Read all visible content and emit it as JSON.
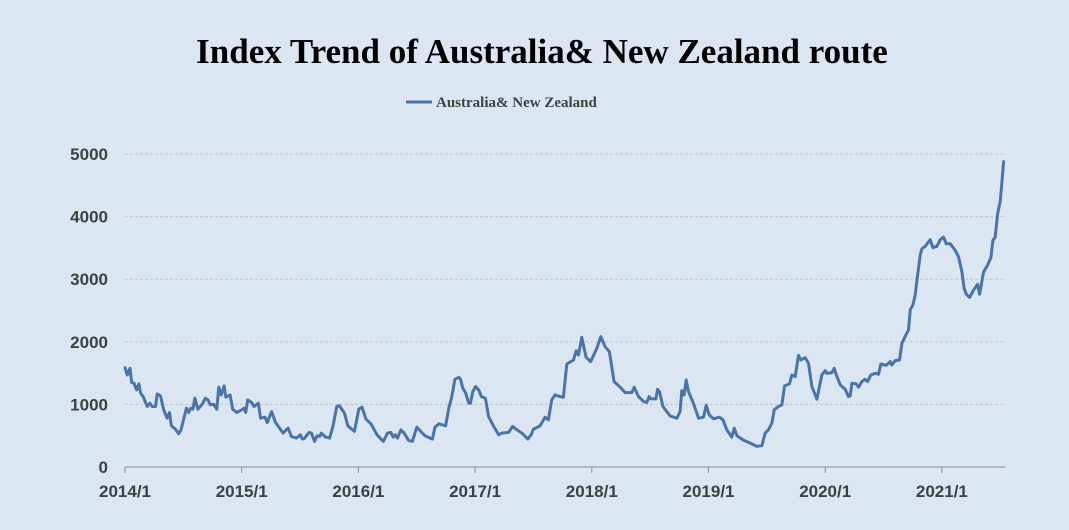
{
  "chart_data": {
    "type": "line",
    "title": "Index Trend of Australia& New Zealand route",
    "xlabel": "",
    "ylabel": "",
    "ylim": [
      0,
      5000
    ],
    "xlim": [
      2014.0,
      2021.53
    ],
    "yticks": [
      0,
      1000,
      2000,
      3000,
      4000,
      5000
    ],
    "xticks": [
      {
        "value": 2014,
        "label": "2014/1"
      },
      {
        "value": 2015,
        "label": "2015/1"
      },
      {
        "value": 2016,
        "label": "2016/1"
      },
      {
        "value": 2017,
        "label": "2017/1"
      },
      {
        "value": 2018,
        "label": "2018/1"
      },
      {
        "value": 2019,
        "label": "2019/1"
      },
      {
        "value": 2020,
        "label": "2020/1"
      },
      {
        "value": 2021,
        "label": "2021/1"
      }
    ],
    "grid": "horizontal-dashed",
    "legend_position": "top-center",
    "series": [
      {
        "name": "Australia& New Zealand",
        "color": "#4a74a8",
        "points": [
          [
            2014.0,
            1587
          ],
          [
            2014.02,
            1470
          ],
          [
            2014.043,
            1576
          ],
          [
            2014.057,
            1348
          ],
          [
            2014.077,
            1338
          ],
          [
            2014.099,
            1231
          ],
          [
            2014.119,
            1327
          ],
          [
            2014.134,
            1178
          ],
          [
            2014.156,
            1125
          ],
          [
            2014.19,
            966
          ],
          [
            2014.213,
            1019
          ],
          [
            2014.233,
            966
          ],
          [
            2014.261,
            966
          ],
          [
            2014.276,
            1168
          ],
          [
            2014.304,
            1136
          ],
          [
            2014.332,
            913
          ],
          [
            2014.361,
            780
          ],
          [
            2014.381,
            871
          ],
          [
            2014.398,
            658
          ],
          [
            2014.432,
            605
          ],
          [
            2014.46,
            531
          ],
          [
            2014.48,
            594
          ],
          [
            2014.526,
            940
          ],
          [
            2014.545,
            871
          ],
          [
            2014.565,
            940
          ],
          [
            2014.582,
            924
          ],
          [
            2014.599,
            1099
          ],
          [
            2014.625,
            924
          ],
          [
            2014.659,
            993
          ],
          [
            2014.688,
            1099
          ],
          [
            2014.71,
            1072
          ],
          [
            2014.73,
            993
          ],
          [
            2014.759,
            1003
          ],
          [
            2014.787,
            924
          ],
          [
            2014.804,
            1274
          ],
          [
            2014.824,
            1152
          ],
          [
            2014.849,
            1295
          ],
          [
            2014.864,
            1115
          ],
          [
            2014.901,
            1152
          ],
          [
            2014.923,
            924
          ],
          [
            2014.957,
            871
          ],
          [
            2015.0,
            913
          ],
          [
            2015.02,
            940
          ],
          [
            2015.034,
            871
          ],
          [
            2015.051,
            1072
          ],
          [
            2015.085,
            1030
          ],
          [
            2015.105,
            966
          ],
          [
            2015.142,
            1019
          ],
          [
            2015.162,
            780
          ],
          [
            2015.199,
            796
          ],
          [
            2015.219,
            711
          ],
          [
            2015.256,
            886
          ],
          [
            2015.29,
            711
          ],
          [
            2015.355,
            541
          ],
          [
            2015.398,
            621
          ],
          [
            2015.426,
            488
          ],
          [
            2015.469,
            462
          ],
          [
            2015.503,
            515
          ],
          [
            2015.52,
            446
          ],
          [
            2015.54,
            462
          ],
          [
            2015.577,
            552
          ],
          [
            2015.597,
            541
          ],
          [
            2015.625,
            409
          ],
          [
            2015.645,
            499
          ],
          [
            2015.668,
            488
          ],
          [
            2015.682,
            541
          ],
          [
            2015.719,
            478
          ],
          [
            2015.753,
            462
          ],
          [
            2015.781,
            637
          ],
          [
            2015.815,
            966
          ],
          [
            2015.838,
            977
          ],
          [
            2015.881,
            860
          ],
          [
            2015.909,
            658
          ],
          [
            2015.966,
            568
          ],
          [
            2016.003,
            924
          ],
          [
            2016.031,
            955
          ],
          [
            2016.065,
            764
          ],
          [
            2016.108,
            690
          ],
          [
            2016.159,
            515
          ],
          [
            2016.213,
            409
          ],
          [
            2016.25,
            541
          ],
          [
            2016.278,
            552
          ],
          [
            2016.298,
            478
          ],
          [
            2016.315,
            515
          ],
          [
            2016.335,
            462
          ],
          [
            2016.364,
            594
          ],
          [
            2016.392,
            541
          ],
          [
            2016.429,
            425
          ],
          [
            2016.463,
            409
          ],
          [
            2016.5,
            637
          ],
          [
            2016.534,
            568
          ],
          [
            2016.571,
            499
          ],
          [
            2016.614,
            462
          ],
          [
            2016.634,
            446
          ],
          [
            2016.656,
            637
          ],
          [
            2016.69,
            690
          ],
          [
            2016.747,
            658
          ],
          [
            2016.776,
            955
          ],
          [
            2016.798,
            1099
          ],
          [
            2016.827,
            1401
          ],
          [
            2016.861,
            1433
          ],
          [
            2016.875,
            1401
          ],
          [
            2016.895,
            1258
          ],
          [
            2016.918,
            1189
          ],
          [
            2016.946,
            1019
          ],
          [
            2016.96,
            1019
          ],
          [
            2016.98,
            1205
          ],
          [
            2017.003,
            1285
          ],
          [
            2017.031,
            1231
          ],
          [
            2017.054,
            1125
          ],
          [
            2017.088,
            1099
          ],
          [
            2017.116,
            807
          ],
          [
            2017.159,
            648
          ],
          [
            2017.202,
            515
          ],
          [
            2017.23,
            541
          ],
          [
            2017.287,
            552
          ],
          [
            2017.321,
            648
          ],
          [
            2017.358,
            594
          ],
          [
            2017.401,
            541
          ],
          [
            2017.452,
            446
          ],
          [
            2017.48,
            515
          ],
          [
            2017.5,
            605
          ],
          [
            2017.557,
            658
          ],
          [
            2017.599,
            796
          ],
          [
            2017.628,
            754
          ],
          [
            2017.656,
            1072
          ],
          [
            2017.685,
            1152
          ],
          [
            2017.729,
            1125
          ],
          [
            2017.757,
            1115
          ],
          [
            2017.786,
            1646
          ],
          [
            2017.843,
            1709
          ],
          [
            2017.866,
            1858
          ],
          [
            2017.886,
            1789
          ],
          [
            2017.914,
            2070
          ],
          [
            2017.951,
            1752
          ],
          [
            2017.991,
            1683
          ],
          [
            2018.043,
            1895
          ],
          [
            2018.077,
            2081
          ],
          [
            2018.114,
            1922
          ],
          [
            2018.151,
            1842
          ],
          [
            2018.191,
            1364
          ],
          [
            2018.243,
            1274
          ],
          [
            2018.286,
            1189
          ],
          [
            2018.343,
            1189
          ],
          [
            2018.363,
            1274
          ],
          [
            2018.4,
            1125
          ],
          [
            2018.443,
            1046
          ],
          [
            2018.471,
            1030
          ],
          [
            2018.491,
            1125
          ],
          [
            2018.506,
            1088
          ],
          [
            2018.549,
            1088
          ],
          [
            2018.563,
            1242
          ],
          [
            2018.58,
            1205
          ],
          [
            2018.609,
            966
          ],
          [
            2018.671,
            817
          ],
          [
            2018.729,
            780
          ],
          [
            2018.757,
            886
          ],
          [
            2018.771,
            1221
          ],
          [
            2018.791,
            1152
          ],
          [
            2018.809,
            1391
          ],
          [
            2018.829,
            1205
          ],
          [
            2018.871,
            1019
          ],
          [
            2018.914,
            780
          ],
          [
            2018.957,
            796
          ],
          [
            2018.98,
            987
          ],
          [
            2019.006,
            833
          ],
          [
            2019.043,
            770
          ],
          [
            2019.094,
            796
          ],
          [
            2019.123,
            754
          ],
          [
            2019.157,
            594
          ],
          [
            2019.2,
            478
          ],
          [
            2019.22,
            621
          ],
          [
            2019.243,
            499
          ],
          [
            2019.294,
            435
          ],
          [
            2019.357,
            382
          ],
          [
            2019.414,
            329
          ],
          [
            2019.457,
            340
          ],
          [
            2019.486,
            541
          ],
          [
            2019.514,
            594
          ],
          [
            2019.543,
            701
          ],
          [
            2019.563,
            913
          ],
          [
            2019.6,
            966
          ],
          [
            2019.629,
            993
          ],
          [
            2019.651,
            1295
          ],
          [
            2019.694,
            1327
          ],
          [
            2019.714,
            1470
          ],
          [
            2019.743,
            1444
          ],
          [
            2019.771,
            1783
          ],
          [
            2019.791,
            1709
          ],
          [
            2019.829,
            1746
          ],
          [
            2019.857,
            1656
          ],
          [
            2019.886,
            1285
          ],
          [
            2019.929,
            1083
          ],
          [
            2019.971,
            1470
          ],
          [
            2020.0,
            1539
          ],
          [
            2020.014,
            1497
          ],
          [
            2020.057,
            1507
          ],
          [
            2020.077,
            1576
          ],
          [
            2020.1,
            1444
          ],
          [
            2020.129,
            1311
          ],
          [
            2020.171,
            1242
          ],
          [
            2020.2,
            1125
          ],
          [
            2020.214,
            1136
          ],
          [
            2020.229,
            1338
          ],
          [
            2020.266,
            1327
          ],
          [
            2020.286,
            1274
          ],
          [
            2020.314,
            1364
          ],
          [
            2020.343,
            1401
          ],
          [
            2020.363,
            1364
          ],
          [
            2020.391,
            1470
          ],
          [
            2020.429,
            1497
          ],
          [
            2020.457,
            1481
          ],
          [
            2020.477,
            1646
          ],
          [
            2020.523,
            1624
          ],
          [
            2020.557,
            1683
          ],
          [
            2020.571,
            1630
          ],
          [
            2020.6,
            1699
          ],
          [
            2020.637,
            1709
          ],
          [
            2020.657,
            1975
          ],
          [
            2020.686,
            2091
          ],
          [
            2020.714,
            2187
          ],
          [
            2020.729,
            2516
          ],
          [
            2020.751,
            2585
          ],
          [
            2020.771,
            2744
          ],
          [
            2020.786,
            2983
          ],
          [
            2020.814,
            3381
          ],
          [
            2020.829,
            3487
          ],
          [
            2020.857,
            3525
          ],
          [
            2020.9,
            3631
          ],
          [
            2020.923,
            3503
          ],
          [
            2020.957,
            3525
          ],
          [
            2020.986,
            3631
          ],
          [
            2021.014,
            3673
          ],
          [
            2021.037,
            3567
          ],
          [
            2021.071,
            3567
          ],
          [
            2021.114,
            3461
          ],
          [
            2021.143,
            3355
          ],
          [
            2021.171,
            3116
          ],
          [
            2021.191,
            2850
          ],
          [
            2021.209,
            2760
          ],
          [
            2021.237,
            2707
          ],
          [
            2021.271,
            2824
          ],
          [
            2021.306,
            2919
          ],
          [
            2021.323,
            2760
          ],
          [
            2021.357,
            3116
          ],
          [
            2021.391,
            3222
          ],
          [
            2021.42,
            3344
          ],
          [
            2021.437,
            3620
          ],
          [
            2021.457,
            3673
          ],
          [
            2021.477,
            4045
          ],
          [
            2021.5,
            4246
          ],
          [
            2021.529,
            4878
          ]
        ]
      }
    ]
  }
}
